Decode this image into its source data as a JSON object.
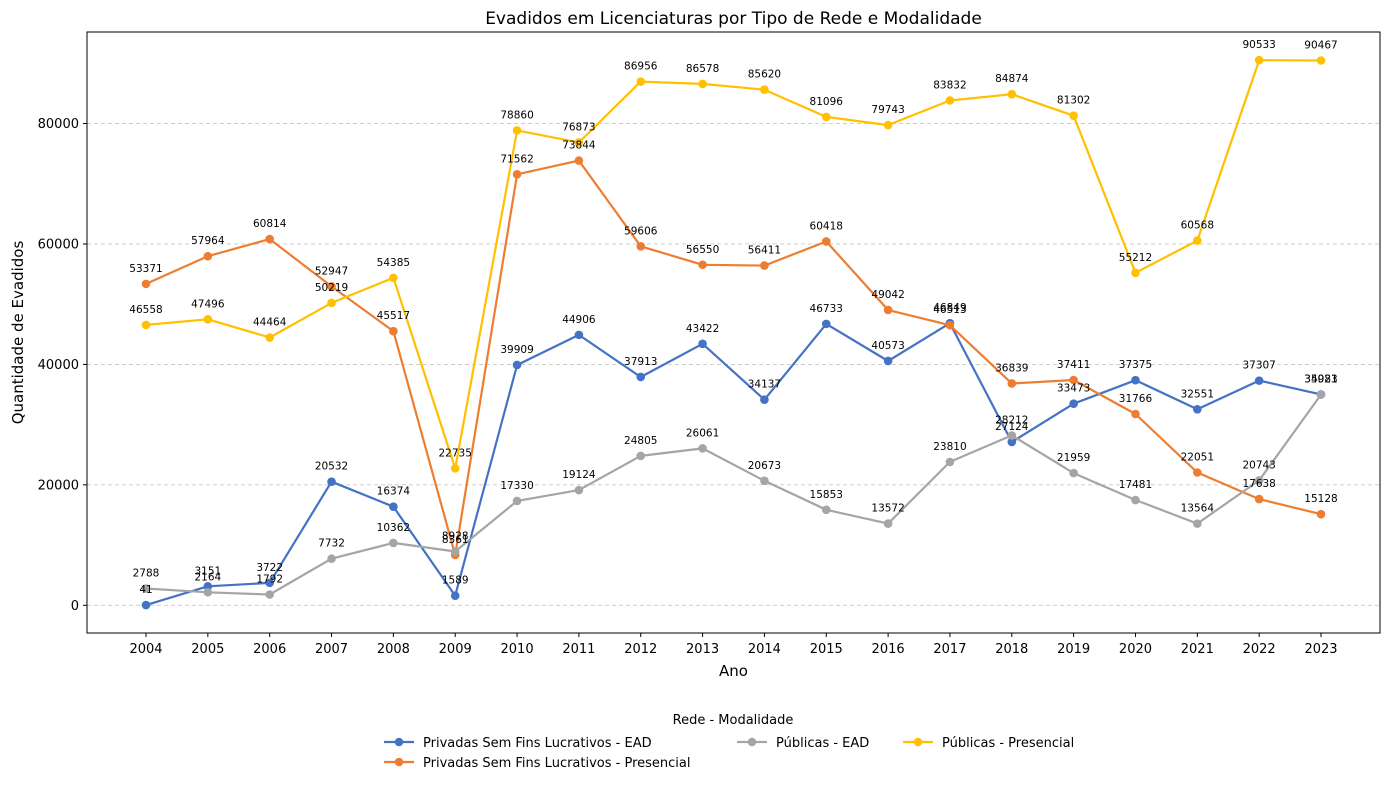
{
  "chart_data": {
    "type": "line",
    "title": "Evadidos em Licenciaturas por Tipo de Rede e Modalidade",
    "xlabel": "Ano",
    "ylabel": "Quantidade de Evadidos",
    "x": [
      "2004",
      "2005",
      "2006",
      "2007",
      "2008",
      "2009",
      "2010",
      "2011",
      "2012",
      "2013",
      "2014",
      "2015",
      "2016",
      "2017",
      "2018",
      "2019",
      "2020",
      "2021",
      "2022",
      "2023"
    ],
    "ylim": [
      -4600,
      95200
    ],
    "yticks": [
      0,
      20000,
      40000,
      60000,
      80000
    ],
    "grid": "y-dashed",
    "legend_title": "Rede - Modalidade",
    "legend_position": "bottom-center",
    "series": [
      {
        "name": "Privadas Sem Fins Lucrativos - EAD",
        "color": "#4472C4",
        "values": [
          41,
          3151,
          3722,
          20532,
          16374,
          1589,
          39909,
          44906,
          37913,
          43422,
          34137,
          46733,
          40573,
          46849,
          27124,
          33473,
          37375,
          32551,
          37307,
          35021
        ]
      },
      {
        "name": "Privadas Sem Fins Lucrativos - Presencial",
        "color": "#ED7D31",
        "values": [
          53371,
          57964,
          60814,
          52947,
          45517,
          8361,
          71562,
          73844,
          59606,
          56550,
          56411,
          60418,
          49042,
          46513,
          36839,
          37411,
          31766,
          22051,
          17638,
          15128
        ]
      },
      {
        "name": "Públicas - EAD",
        "color": "#A5A5A5",
        "values": [
          2788,
          2164,
          1792,
          7732,
          10362,
          8928,
          17330,
          19124,
          24805,
          26061,
          20673,
          15853,
          13572,
          23810,
          28212,
          21959,
          17481,
          13564,
          20743,
          34983
        ]
      },
      {
        "name": "Públicas - Presencial",
        "color": "#FFC000",
        "values": [
          46558,
          47496,
          44464,
          50219,
          54385,
          22735,
          78860,
          76873,
          86956,
          86578,
          85620,
          81096,
          79743,
          83832,
          84874,
          81302,
          55212,
          60568,
          90533,
          90467
        ]
      }
    ]
  }
}
